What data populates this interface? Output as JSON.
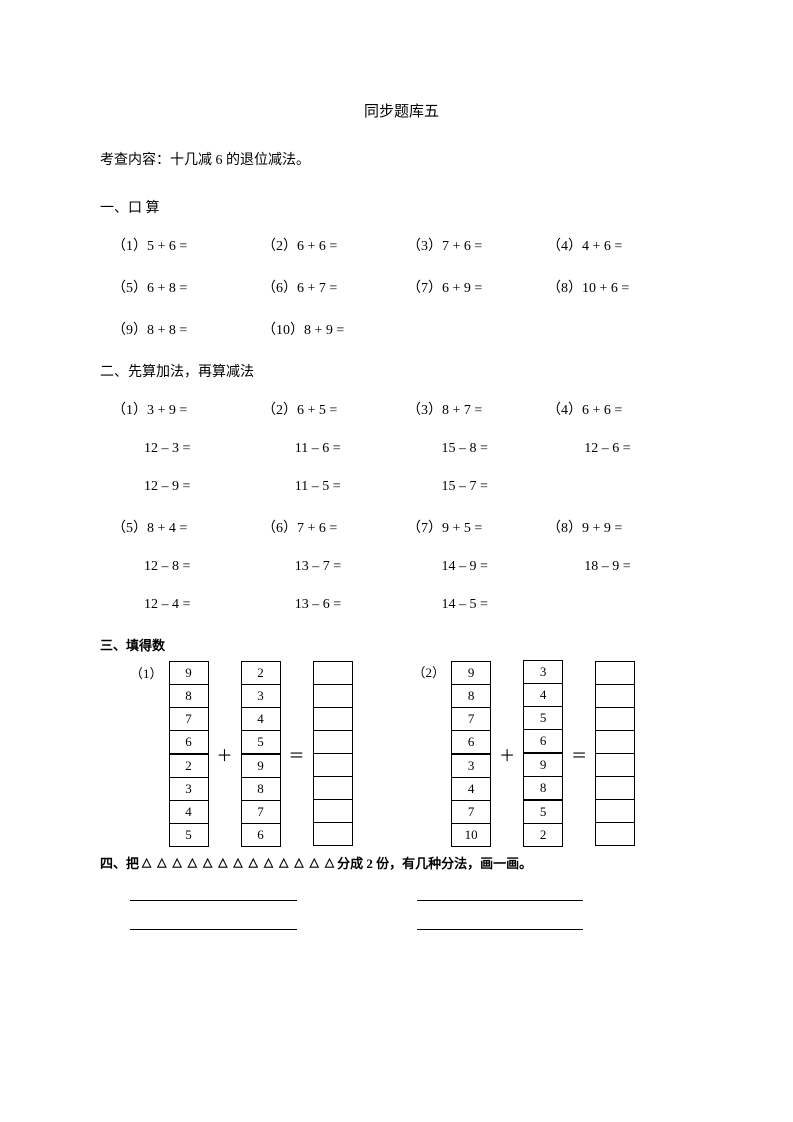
{
  "title": "同步题库五",
  "subtitle": "考查内容：十几减 6 的退位减法。",
  "section1": {
    "heading": "一、口 算",
    "rows": [
      [
        "（1）5 + 6 =",
        "（2）6 + 6 =",
        "（3）7 + 6 =",
        "（4）4 + 6 ="
      ],
      [
        "（5）6 + 8 =",
        "（6）6 + 7 =",
        "（7）6 + 9 =",
        "（8）10 + 6 ="
      ],
      [
        "（9）8 + 8 =",
        "（10）8 + 9 =",
        "",
        ""
      ]
    ]
  },
  "section2": {
    "heading": "二、先算加法，再算减法",
    "rows": [
      {
        "cells": [
          "（1）3 + 9 =",
          "（2）6 + 5  =",
          "（3）8 + 7 =",
          "（4）6 + 6 ="
        ],
        "indent": false
      },
      {
        "cells": [
          "12 – 3 =",
          "11 – 6 =",
          "15 – 8 =",
          "12 – 6 ="
        ],
        "indent": true
      },
      {
        "cells": [
          "12 – 9 =",
          "11 – 5 =",
          "15 – 7 =",
          ""
        ],
        "indent": true
      },
      {
        "cells": [
          "（5）8 + 4 =",
          "（6）7 + 6 =",
          "（7）9 + 5 =",
          "（8）9 + 9 ="
        ],
        "indent": false
      },
      {
        "cells": [
          "12 – 8 =",
          "13 – 7 =",
          "14 – 9 =",
          "18 – 9 ="
        ],
        "indent": true
      },
      {
        "cells": [
          "12 – 4 =",
          "13 – 6 =",
          "14 – 5 =",
          ""
        ],
        "indent": true
      }
    ]
  },
  "section3": {
    "heading": "三、填得数",
    "groups": [
      {
        "label": "（1）",
        "colA": [
          "9",
          "8",
          "7",
          "6",
          "2",
          "3",
          "4",
          "5"
        ],
        "colB": [
          "2",
          "3",
          "4",
          "5",
          "9",
          "8",
          "7",
          "6"
        ],
        "thickA": [
          3
        ],
        "thickB": [
          3
        ],
        "blanks": 8
      },
      {
        "label": "（2）",
        "colA": [
          "9",
          "8",
          "7",
          "6",
          "3",
          "4",
          "7",
          "10"
        ],
        "colB": [
          "3",
          "4",
          "5",
          "6",
          "9",
          "8",
          "5",
          "2"
        ],
        "thickA": [
          3
        ],
        "thickB": [
          3,
          5
        ],
        "blanks": 8
      }
    ],
    "ops": {
      "plus": "＋",
      "eq": "＝"
    }
  },
  "section4": {
    "prefix": "四、把",
    "triangle": "△",
    "triangle_count": 13,
    "suffix": "分成 2 份，有几种分法，画一画。"
  }
}
